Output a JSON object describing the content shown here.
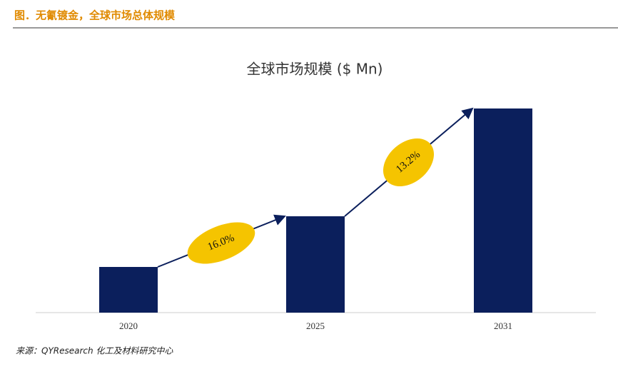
{
  "header": "图．无氰镀金，全球市场总体规模",
  "chart_data": {
    "type": "bar",
    "title": "全球市场规模 ($ Mn)",
    "categories": [
      "2020",
      "2025",
      "2031"
    ],
    "values": [
      64,
      135,
      286
    ],
    "color": "#0b1f5c",
    "annotations": [
      "16.0%",
      "13.2%"
    ],
    "annotation_color": "#f5c400"
  },
  "source": "来源：QYResearch 化工及材料研究中心"
}
